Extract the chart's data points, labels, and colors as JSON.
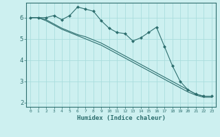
{
  "title": "",
  "xlabel": "Humidex (Indice chaleur)",
  "bg_color": "#cdf0f0",
  "line_color": "#2d6e6e",
  "grid_color": "#aadddd",
  "xlim": [
    -0.5,
    23.5
  ],
  "ylim": [
    1.8,
    6.7
  ],
  "x": [
    0,
    1,
    2,
    3,
    4,
    5,
    6,
    7,
    8,
    9,
    10,
    11,
    12,
    13,
    14,
    15,
    16,
    17,
    18,
    19,
    20,
    21,
    22,
    23
  ],
  "line_marker": [
    6.0,
    6.0,
    6.0,
    6.1,
    5.9,
    6.1,
    6.5,
    6.4,
    6.3,
    5.85,
    5.5,
    5.3,
    5.25,
    4.9,
    5.05,
    5.3,
    5.55,
    4.65,
    3.75,
    3.0,
    2.6,
    2.4,
    2.3,
    2.3
  ],
  "line_smooth1": [
    6.0,
    6.0,
    5.9,
    5.7,
    5.5,
    5.35,
    5.2,
    5.1,
    4.95,
    4.8,
    4.6,
    4.4,
    4.2,
    4.0,
    3.8,
    3.6,
    3.4,
    3.2,
    3.0,
    2.8,
    2.6,
    2.4,
    2.3,
    2.3
  ],
  "line_smooth2": [
    6.0,
    6.0,
    5.85,
    5.65,
    5.45,
    5.3,
    5.15,
    5.0,
    4.85,
    4.7,
    4.5,
    4.3,
    4.1,
    3.9,
    3.7,
    3.5,
    3.3,
    3.1,
    2.9,
    2.7,
    2.5,
    2.35,
    2.25,
    2.25
  ],
  "yticks": [
    2,
    3,
    4,
    5,
    6
  ],
  "xtick_labels": [
    "0",
    "1",
    "2",
    "3",
    "4",
    "5",
    "6",
    "7",
    "8",
    "9",
    "10",
    "11",
    "12",
    "13",
    "14",
    "15",
    "16",
    "17",
    "18",
    "19",
    "20",
    "21",
    "22",
    "23"
  ]
}
